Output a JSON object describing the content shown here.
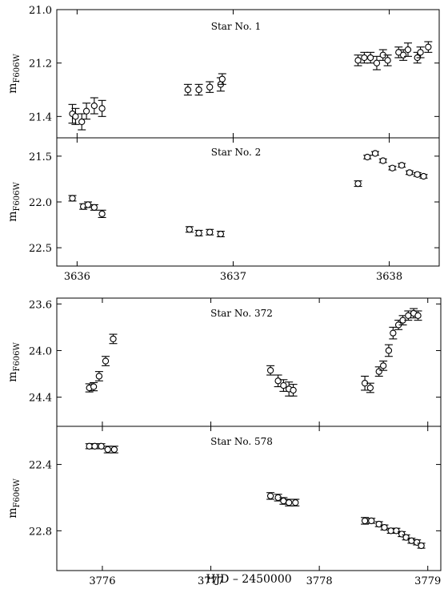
{
  "figure": {
    "xlabel": "HJD – 2450000",
    "ylabel_main": "m",
    "ylabel_sub": "F606W"
  },
  "chart_data": [
    {
      "type": "scatter",
      "title": "Star No. 1",
      "ylabel": "mF606W",
      "xlim": [
        3635.87,
        3638.32
      ],
      "ylim": [
        21.48,
        21.0
      ],
      "yinverted": true,
      "yticks": [
        21.0,
        21.2,
        21.4
      ],
      "ytick_labels": [
        "21.0",
        "21.2",
        "21.4"
      ],
      "xticks": [
        3636,
        3637,
        3638
      ],
      "x": [
        3635.97,
        3635.99,
        3636.03,
        3636.06,
        3636.11,
        3636.16,
        3636.71,
        3636.78,
        3636.85,
        3636.92,
        3636.93,
        3637.8,
        3637.84,
        3637.88,
        3637.92,
        3637.96,
        3637.99,
        3638.06,
        3638.09,
        3638.12,
        3638.18,
        3638.2,
        3638.25
      ],
      "y": [
        21.39,
        21.4,
        21.42,
        21.38,
        21.36,
        21.37,
        21.3,
        21.3,
        21.29,
        21.28,
        21.26,
        21.19,
        21.18,
        21.18,
        21.2,
        21.17,
        21.19,
        21.16,
        21.17,
        21.15,
        21.18,
        21.16,
        21.14
      ],
      "yerr": [
        0.035,
        0.03,
        0.03,
        0.03,
        0.03,
        0.03,
        0.02,
        0.02,
        0.02,
        0.025,
        0.02,
        0.02,
        0.02,
        0.02,
        0.025,
        0.02,
        0.02,
        0.02,
        0.02,
        0.025,
        0.02,
        0.02,
        0.02
      ]
    },
    {
      "type": "scatter",
      "title": "Star No. 2",
      "ylabel": "mF606W",
      "xlim": [
        3635.87,
        3638.32
      ],
      "ylim": [
        22.7,
        21.3
      ],
      "yinverted": true,
      "yticks": [
        21.5,
        22.0,
        22.5
      ],
      "ytick_labels": [
        "21.5",
        "22.0",
        "22.5"
      ],
      "xticks": [
        3636,
        3637,
        3638
      ],
      "xtick_labels": [
        "3636",
        "3637",
        "3638"
      ],
      "x": [
        3635.97,
        3636.04,
        3636.07,
        3636.11,
        3636.16,
        3636.72,
        3636.78,
        3636.85,
        3636.92,
        3637.8,
        3637.86,
        3637.91,
        3637.96,
        3638.02,
        3638.08,
        3638.13,
        3638.18,
        3638.22
      ],
      "y": [
        21.96,
        22.05,
        22.03,
        22.06,
        22.13,
        22.3,
        22.34,
        22.33,
        22.35,
        21.8,
        21.51,
        21.47,
        21.55,
        21.63,
        21.6,
        21.68,
        21.7,
        21.72
      ],
      "yerr": [
        0.03,
        0.03,
        0.03,
        0.03,
        0.04,
        0.03,
        0.03,
        0.03,
        0.03,
        0.03,
        0.02,
        0.02,
        0.02,
        0.02,
        0.02,
        0.02,
        0.02,
        0.02
      ]
    },
    {
      "type": "scatter",
      "title": "Star No. 372",
      "ylabel": "mF606W",
      "xlim": [
        3775.58,
        3779.12
      ],
      "ylim": [
        24.65,
        23.55
      ],
      "yinverted": true,
      "yticks": [
        23.6,
        24.0,
        24.4
      ],
      "ytick_labels": [
        "23.6",
        "24.0",
        "24.4"
      ],
      "xticks": [
        3776,
        3777,
        3778,
        3779
      ],
      "x": [
        3775.88,
        3775.92,
        3775.97,
        3776.03,
        3776.1,
        3777.55,
        3777.62,
        3777.67,
        3777.72,
        3777.76,
        3778.42,
        3778.47,
        3778.55,
        3778.59,
        3778.64,
        3778.68,
        3778.73,
        3778.77,
        3778.82,
        3778.87,
        3778.91
      ],
      "y": [
        24.32,
        24.31,
        24.22,
        24.09,
        23.9,
        24.17,
        24.26,
        24.3,
        24.33,
        24.34,
        24.28,
        24.32,
        24.18,
        24.13,
        24.0,
        23.85,
        23.78,
        23.74,
        23.7,
        23.68,
        23.7
      ],
      "yerr": [
        0.035,
        0.035,
        0.04,
        0.04,
        0.04,
        0.04,
        0.05,
        0.05,
        0.06,
        0.05,
        0.06,
        0.04,
        0.04,
        0.04,
        0.05,
        0.05,
        0.04,
        0.04,
        0.04,
        0.04,
        0.04
      ]
    },
    {
      "type": "scatter",
      "title": "Star No. 578",
      "ylabel": "mF606W",
      "xlim": [
        3775.58,
        3779.12
      ],
      "ylim": [
        23.04,
        22.17
      ],
      "yinverted": true,
      "yticks": [
        22.4,
        22.8
      ],
      "ytick_labels": [
        "22.4",
        "22.8"
      ],
      "xticks": [
        3776,
        3777,
        3778,
        3779
      ],
      "xtick_labels": [
        "3776",
        "3777",
        "3778",
        "3779"
      ],
      "x": [
        3775.88,
        3775.93,
        3775.99,
        3776.05,
        3776.11,
        3777.55,
        3777.62,
        3777.67,
        3777.72,
        3777.78,
        3778.42,
        3778.48,
        3778.55,
        3778.6,
        3778.66,
        3778.71,
        3778.76,
        3778.8,
        3778.85,
        3778.9,
        3778.94
      ],
      "y": [
        22.29,
        22.29,
        22.29,
        22.31,
        22.31,
        22.59,
        22.6,
        22.62,
        22.63,
        22.63,
        22.74,
        22.74,
        22.76,
        22.78,
        22.8,
        22.8,
        22.82,
        22.84,
        22.86,
        22.87,
        22.89
      ],
      "yerr": [
        0.015,
        0.015,
        0.015,
        0.02,
        0.02,
        0.02,
        0.02,
        0.02,
        0.02,
        0.02,
        0.02,
        0.015,
        0.015,
        0.015,
        0.015,
        0.015,
        0.015,
        0.015,
        0.015,
        0.015,
        0.015
      ]
    }
  ]
}
